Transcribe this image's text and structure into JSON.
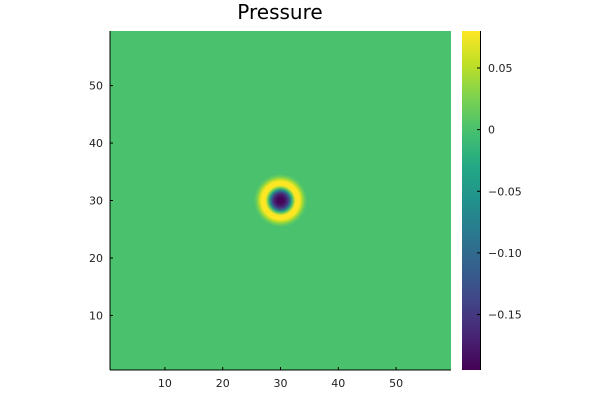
{
  "chart_data": {
    "type": "heatmap",
    "title": "Pressure",
    "xlabel": "",
    "ylabel": "",
    "xlim": [
      0.5,
      59.5
    ],
    "ylim": [
      0.5,
      59.5
    ],
    "x_ticks": [
      10,
      20,
      30,
      40,
      50
    ],
    "y_ticks": [
      10,
      20,
      30,
      40,
      50
    ],
    "background_value": 0,
    "feature": {
      "kind": "radial-pulse",
      "center": [
        30,
        30
      ],
      "profile": [
        {
          "r": 0.0,
          "value": -0.19
        },
        {
          "r": 0.6,
          "value": -0.19
        },
        {
          "r": 1.3,
          "value": -0.15
        },
        {
          "r": 1.8,
          "value": -0.06
        },
        {
          "r": 2.2,
          "value": 0.02
        },
        {
          "r": 2.6,
          "value": 0.08
        },
        {
          "r": 3.3,
          "value": 0.08
        },
        {
          "r": 3.7,
          "value": 0.05
        },
        {
          "r": 4.1,
          "value": 0.02
        },
        {
          "r": 4.6,
          "value": 0.0
        }
      ]
    },
    "colorbar": {
      "colormap": "viridis",
      "min": -0.195,
      "max": 0.08,
      "ticks": [
        {
          "value": 0.05,
          "label": "0.05"
        },
        {
          "value": 0,
          "label": "0"
        },
        {
          "value": -0.05,
          "label": "−0.05"
        },
        {
          "value": -0.1,
          "label": "−0.10"
        },
        {
          "value": -0.15,
          "label": "−0.15"
        }
      ]
    },
    "grid": false,
    "legend": "none"
  }
}
